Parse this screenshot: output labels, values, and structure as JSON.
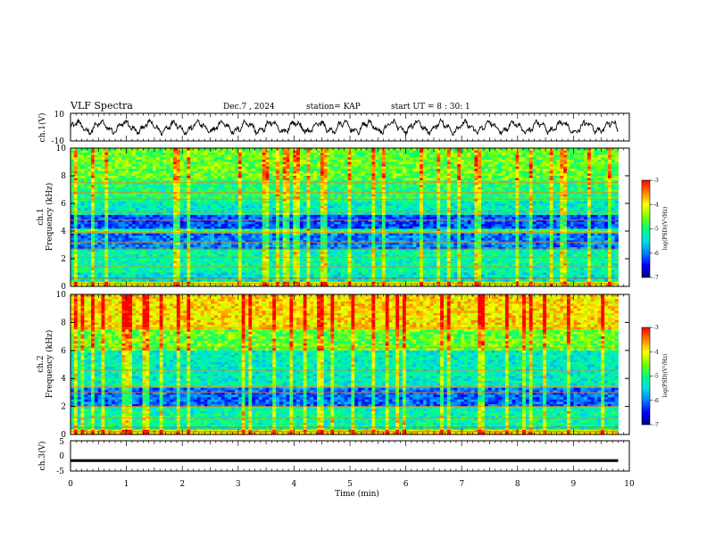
{
  "header": {
    "title": "VLF Spectra",
    "date": "Dec.7 , 2024",
    "station": "station= KAP",
    "start_time": "start UT =  8 : 30: 1"
  },
  "chart_data": [
    {
      "type": "line",
      "name": "ch1-waveform",
      "ylabel": "ch.1(V)",
      "ylim": [
        -10,
        10
      ],
      "yticks": [
        "10",
        "-10"
      ],
      "xlim": [
        0,
        10
      ],
      "note": "continuous oscillating trace roughly between -6 and 6 V"
    },
    {
      "type": "heatmap",
      "name": "ch1-spectrogram",
      "ylabel_line1": "ch.1",
      "ylabel_line2": "Frequency (kHz)",
      "ylim": [
        0,
        10
      ],
      "yticks": [
        "0",
        "2",
        "4",
        "6",
        "8",
        "10"
      ],
      "xlim": [
        0,
        10
      ],
      "data_extent_min": 9.8,
      "colorbar": {
        "label": "log(PSD)(V²/Hz)",
        "range": [
          -7,
          -3
        ],
        "ticks": [
          "-3",
          "-4",
          "-5",
          "-6",
          "-7"
        ]
      }
    },
    {
      "type": "heatmap",
      "name": "ch2-spectrogram",
      "ylabel_line1": "ch.2",
      "ylabel_line2": "Frequency (kHz)",
      "ylim": [
        0,
        10
      ],
      "yticks": [
        "0",
        "2",
        "4",
        "6",
        "8",
        "10"
      ],
      "xlim": [
        0,
        10
      ],
      "data_extent_min": 9.8,
      "colorbar": {
        "label": "log(PSD)(V²/Hz)",
        "range": [
          -7,
          -3
        ],
        "ticks": [
          "-3",
          "-4",
          "-5",
          "-6",
          "-7"
        ]
      }
    },
    {
      "type": "line",
      "name": "ch3-waveform",
      "ylabel": "ch.3(V)",
      "ylim": [
        -5,
        5
      ],
      "yticks": [
        "5",
        "0",
        "-5"
      ],
      "xlim": [
        0,
        10
      ],
      "note": "thick flat trace near -1.5 V"
    }
  ],
  "xaxis": {
    "label": "Time (min)",
    "ticks": [
      "0",
      "1",
      "2",
      "3",
      "4",
      "5",
      "6",
      "7",
      "8",
      "9",
      "10"
    ]
  },
  "colors": {
    "ink": "#000000",
    "background": "#ffffff",
    "colormap": [
      "#000080",
      "#0000ff",
      "#0080ff",
      "#00e0e0",
      "#00ff80",
      "#80ff00",
      "#ffff00",
      "#ff8000",
      "#ff0000"
    ]
  }
}
